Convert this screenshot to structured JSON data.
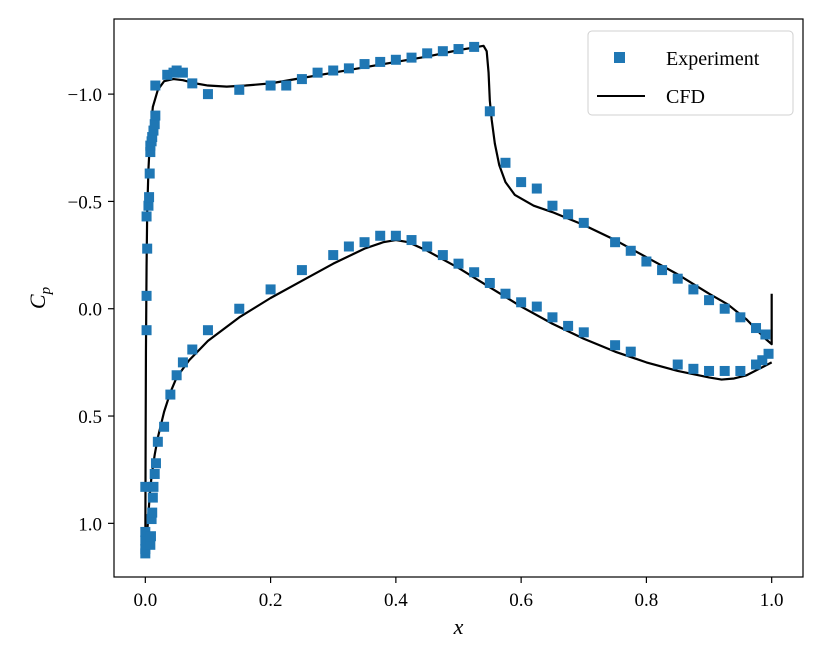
{
  "chart_data": {
    "type": "scatter+line",
    "title": "",
    "xlabel": "x",
    "ylabel_main": "C",
    "ylabel_sub": "p",
    "xlim": [
      -0.05,
      1.05
    ],
    "ylim": [
      1.25,
      -1.35
    ],
    "y_inverted": true,
    "grid": false,
    "legend_position": "top-right",
    "xticks": [
      0.0,
      0.2,
      0.4,
      0.6,
      0.8,
      1.0
    ],
    "xtick_labels": [
      "0.0",
      "0.2",
      "0.4",
      "0.6",
      "0.8",
      "1.0"
    ],
    "yticks": [
      -1.0,
      -0.5,
      0.0,
      0.5,
      1.0
    ],
    "ytick_labels": [
      "−1.0",
      "−0.5",
      "0.0",
      "0.5",
      "1.0"
    ],
    "colors": {
      "experiment": "#1f77b4",
      "cfd": "#000000"
    },
    "series": [
      {
        "name": "Experiment",
        "kind": "scatter",
        "marker": "square",
        "points": [
          [
            0.0,
            1.14
          ],
          [
            0.0,
            1.12
          ],
          [
            0.0,
            1.08
          ],
          [
            0.0,
            1.04
          ],
          [
            0.0,
            0.83
          ],
          [
            0.002,
            0.1
          ],
          [
            0.002,
            -0.06
          ],
          [
            0.003,
            -0.28
          ],
          [
            0.002,
            -0.43
          ],
          [
            0.005,
            -0.48
          ],
          [
            0.006,
            -0.52
          ],
          [
            0.007,
            -0.63
          ],
          [
            0.008,
            -0.73
          ],
          [
            0.008,
            -0.76
          ],
          [
            0.01,
            -0.78
          ],
          [
            0.011,
            -0.8
          ],
          [
            0.013,
            -0.83
          ],
          [
            0.015,
            -0.86
          ],
          [
            0.016,
            -0.9
          ],
          [
            0.016,
            -1.04
          ],
          [
            0.008,
            1.1
          ],
          [
            0.009,
            1.06
          ],
          [
            0.01,
            0.98
          ],
          [
            0.011,
            0.95
          ],
          [
            0.012,
            0.88
          ],
          [
            0.013,
            0.83
          ],
          [
            0.015,
            0.77
          ],
          [
            0.017,
            0.72
          ],
          [
            0.02,
            0.62
          ],
          [
            0.03,
            0.55
          ],
          [
            0.04,
            0.4
          ],
          [
            0.05,
            0.31
          ],
          [
            0.06,
            0.25
          ],
          [
            0.075,
            0.19
          ],
          [
            0.1,
            0.1
          ],
          [
            0.15,
            0.0
          ],
          [
            0.2,
            -0.09
          ],
          [
            0.25,
            -0.18
          ],
          [
            0.3,
            -0.25
          ],
          [
            0.325,
            -0.29
          ],
          [
            0.35,
            -0.31
          ],
          [
            0.375,
            -0.34
          ],
          [
            0.4,
            -0.34
          ],
          [
            0.425,
            -0.32
          ],
          [
            0.45,
            -0.29
          ],
          [
            0.475,
            -0.25
          ],
          [
            0.5,
            -0.21
          ],
          [
            0.525,
            -0.17
          ],
          [
            0.55,
            -0.12
          ],
          [
            0.575,
            -0.07
          ],
          [
            0.6,
            -0.03
          ],
          [
            0.625,
            -0.01
          ],
          [
            0.65,
            0.04
          ],
          [
            0.675,
            0.08
          ],
          [
            0.7,
            0.11
          ],
          [
            0.75,
            0.17
          ],
          [
            0.775,
            0.2
          ],
          [
            0.85,
            0.26
          ],
          [
            0.875,
            0.28
          ],
          [
            0.9,
            0.29
          ],
          [
            0.925,
            0.29
          ],
          [
            0.95,
            0.29
          ],
          [
            0.975,
            0.26
          ],
          [
            0.985,
            0.24
          ],
          [
            0.995,
            0.21
          ],
          [
            0.035,
            -1.09
          ],
          [
            0.045,
            -1.1
          ],
          [
            0.05,
            -1.11
          ],
          [
            0.06,
            -1.1
          ],
          [
            0.075,
            -1.05
          ],
          [
            0.1,
            -1.0
          ],
          [
            0.15,
            -1.02
          ],
          [
            0.2,
            -1.04
          ],
          [
            0.225,
            -1.04
          ],
          [
            0.25,
            -1.07
          ],
          [
            0.275,
            -1.1
          ],
          [
            0.3,
            -1.11
          ],
          [
            0.325,
            -1.12
          ],
          [
            0.35,
            -1.14
          ],
          [
            0.375,
            -1.15
          ],
          [
            0.4,
            -1.16
          ],
          [
            0.425,
            -1.17
          ],
          [
            0.45,
            -1.19
          ],
          [
            0.475,
            -1.2
          ],
          [
            0.5,
            -1.21
          ],
          [
            0.525,
            -1.22
          ],
          [
            0.55,
            -0.92
          ],
          [
            0.575,
            -0.68
          ],
          [
            0.6,
            -0.59
          ],
          [
            0.625,
            -0.56
          ],
          [
            0.65,
            -0.48
          ],
          [
            0.675,
            -0.44
          ],
          [
            0.7,
            -0.4
          ],
          [
            0.75,
            -0.31
          ],
          [
            0.775,
            -0.27
          ],
          [
            0.8,
            -0.22
          ],
          [
            0.825,
            -0.18
          ],
          [
            0.85,
            -0.14
          ],
          [
            0.875,
            -0.09
          ],
          [
            0.9,
            -0.04
          ],
          [
            0.925,
            0.0
          ],
          [
            0.95,
            0.04
          ],
          [
            0.975,
            0.09
          ],
          [
            0.99,
            0.12
          ]
        ]
      },
      {
        "name": "CFD",
        "kind": "line",
        "upper": [
          [
            0.0,
            1.13
          ],
          [
            0.0005,
            0.6
          ],
          [
            0.001,
            0.2
          ],
          [
            0.002,
            -0.2
          ],
          [
            0.003,
            -0.45
          ],
          [
            0.005,
            -0.65
          ],
          [
            0.008,
            -0.82
          ],
          [
            0.012,
            -0.94
          ],
          [
            0.02,
            -1.02
          ],
          [
            0.03,
            -1.06
          ],
          [
            0.045,
            -1.07
          ],
          [
            0.06,
            -1.065
          ],
          [
            0.08,
            -1.05
          ],
          [
            0.1,
            -1.04
          ],
          [
            0.13,
            -1.035
          ],
          [
            0.16,
            -1.04
          ],
          [
            0.2,
            -1.05
          ],
          [
            0.25,
            -1.075
          ],
          [
            0.3,
            -1.1
          ],
          [
            0.35,
            -1.125
          ],
          [
            0.4,
            -1.15
          ],
          [
            0.45,
            -1.175
          ],
          [
            0.5,
            -1.205
          ],
          [
            0.53,
            -1.22
          ],
          [
            0.54,
            -1.225
          ],
          [
            0.545,
            -1.2
          ],
          [
            0.548,
            -1.1
          ],
          [
            0.55,
            -0.97
          ],
          [
            0.553,
            -0.88
          ],
          [
            0.558,
            -0.77
          ],
          [
            0.565,
            -0.67
          ],
          [
            0.575,
            -0.59
          ],
          [
            0.59,
            -0.53
          ],
          [
            0.62,
            -0.48
          ],
          [
            0.65,
            -0.45
          ],
          [
            0.7,
            -0.39
          ],
          [
            0.75,
            -0.32
          ],
          [
            0.8,
            -0.24
          ],
          [
            0.85,
            -0.16
          ],
          [
            0.9,
            -0.07
          ],
          [
            0.93,
            -0.02
          ],
          [
            0.96,
            0.05
          ],
          [
            0.98,
            0.11
          ],
          [
            0.99,
            0.14
          ],
          [
            1.0,
            0.165
          ],
          [
            1.0,
            -0.07
          ]
        ],
        "lower": [
          [
            0.0,
            1.13
          ],
          [
            0.002,
            1.1
          ],
          [
            0.004,
            1.0
          ],
          [
            0.007,
            0.87
          ],
          [
            0.01,
            0.78
          ],
          [
            0.015,
            0.68
          ],
          [
            0.02,
            0.6
          ],
          [
            0.03,
            0.48
          ],
          [
            0.04,
            0.39
          ],
          [
            0.05,
            0.32
          ],
          [
            0.07,
            0.24
          ],
          [
            0.1,
            0.15
          ],
          [
            0.15,
            0.04
          ],
          [
            0.2,
            -0.05
          ],
          [
            0.25,
            -0.13
          ],
          [
            0.3,
            -0.21
          ],
          [
            0.35,
            -0.28
          ],
          [
            0.38,
            -0.31
          ],
          [
            0.4,
            -0.32
          ],
          [
            0.42,
            -0.31
          ],
          [
            0.45,
            -0.27
          ],
          [
            0.5,
            -0.19
          ],
          [
            0.55,
            -0.1
          ],
          [
            0.6,
            -0.01
          ],
          [
            0.65,
            0.07
          ],
          [
            0.7,
            0.14
          ],
          [
            0.75,
            0.2
          ],
          [
            0.8,
            0.25
          ],
          [
            0.85,
            0.29
          ],
          [
            0.9,
            0.32
          ],
          [
            0.92,
            0.33
          ],
          [
            0.94,
            0.325
          ],
          [
            0.96,
            0.31
          ],
          [
            0.98,
            0.28
          ],
          [
            1.0,
            0.25
          ]
        ]
      }
    ],
    "legend": [
      {
        "label": "Experiment",
        "marker": "square"
      },
      {
        "label": "CFD",
        "marker": "line"
      }
    ]
  }
}
